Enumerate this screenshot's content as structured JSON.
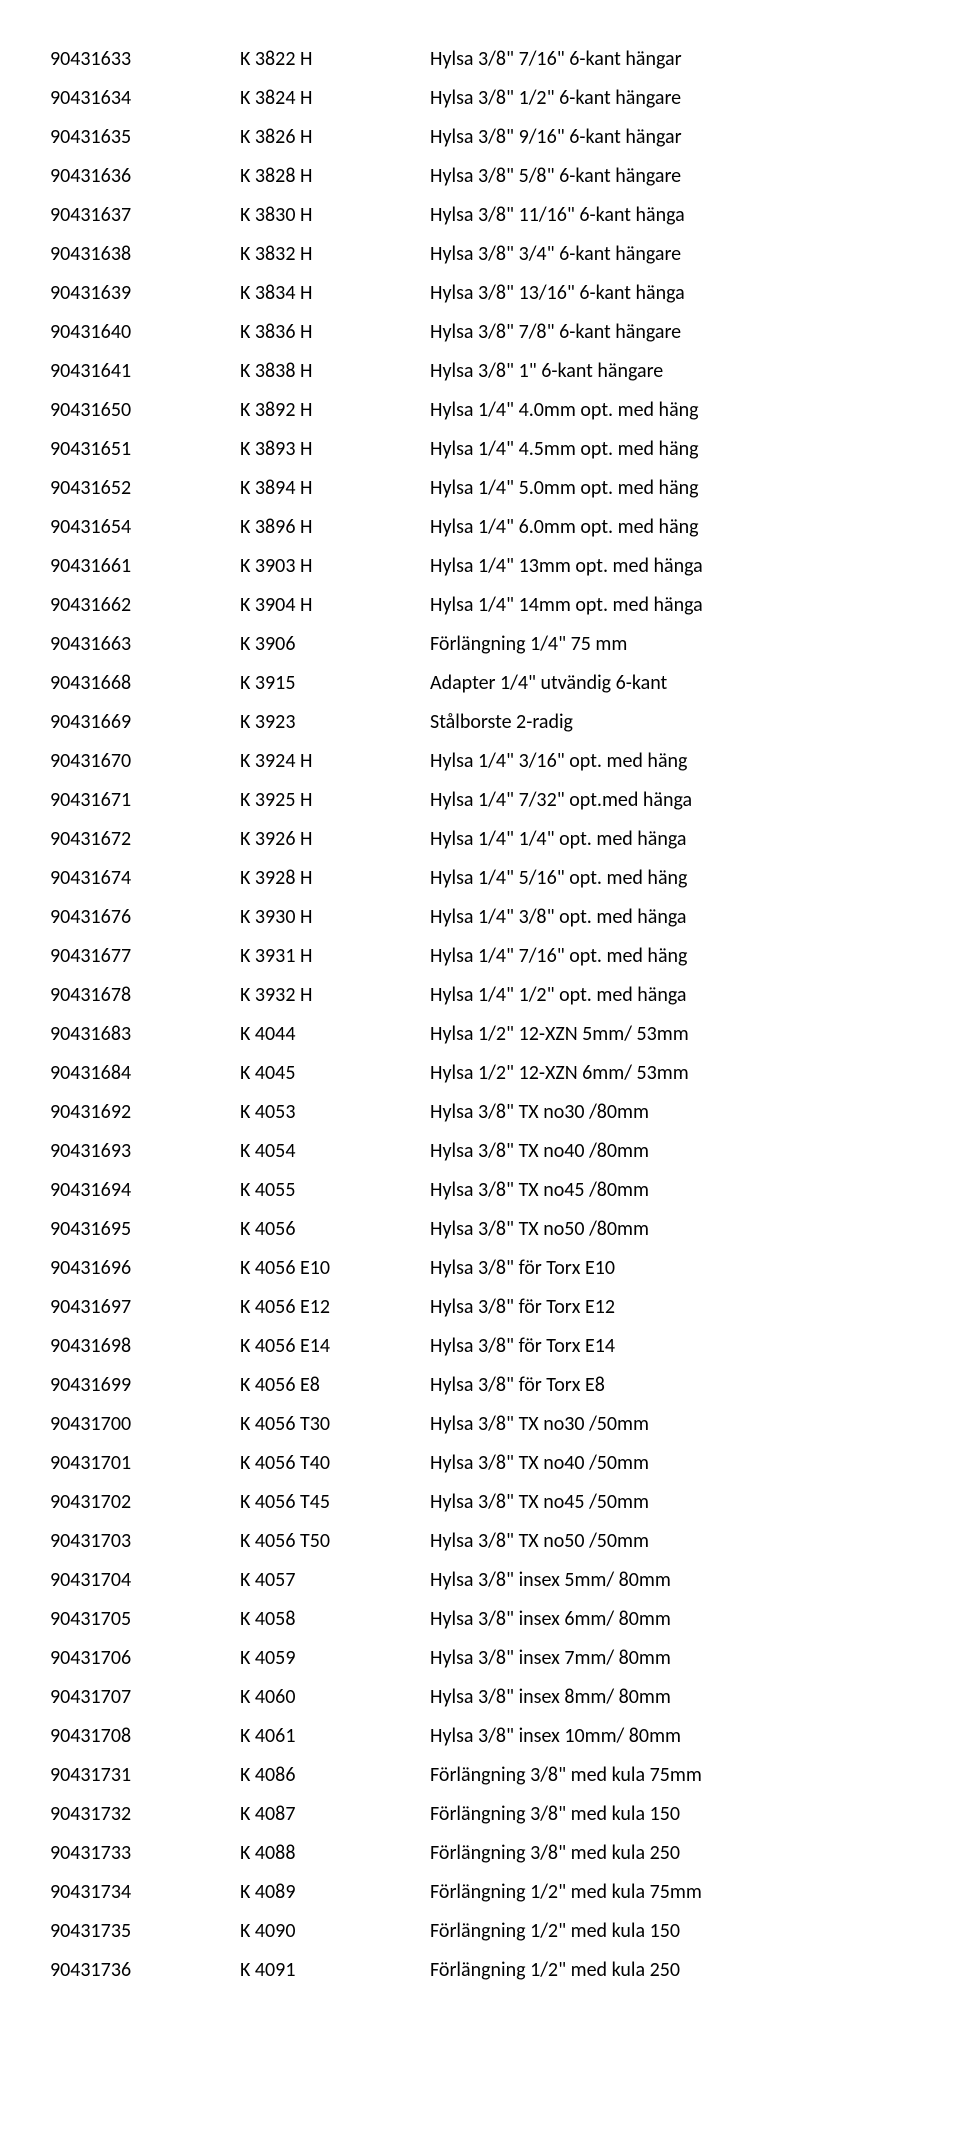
{
  "rows": [
    {
      "c1": "90431633",
      "c2": "K 3822 H",
      "c3": "Hylsa 3/8\" 7/16\" 6-kant hängar"
    },
    {
      "c1": "90431634",
      "c2": "K 3824 H",
      "c3": "Hylsa 3/8\" 1/2\" 6-kant hängare"
    },
    {
      "c1": "90431635",
      "c2": "K 3826 H",
      "c3": "Hylsa 3/8\" 9/16\" 6-kant hängar"
    },
    {
      "c1": "90431636",
      "c2": "K 3828 H",
      "c3": "Hylsa 3/8\" 5/8\" 6-kant hängare"
    },
    {
      "c1": "90431637",
      "c2": "K 3830 H",
      "c3": "Hylsa 3/8\" 11/16\" 6-kant hänga"
    },
    {
      "c1": "90431638",
      "c2": "K 3832 H",
      "c3": "Hylsa 3/8\" 3/4\" 6-kant hängare"
    },
    {
      "c1": "90431639",
      "c2": "K 3834 H",
      "c3": "Hylsa 3/8\" 13/16\" 6-kant hänga"
    },
    {
      "c1": "90431640",
      "c2": "K 3836 H",
      "c3": "Hylsa 3/8\" 7/8\" 6-kant hängare"
    },
    {
      "c1": "90431641",
      "c2": "K 3838 H",
      "c3": "Hylsa 3/8\" 1\" 6-kant hängare"
    },
    {
      "c1": "90431650",
      "c2": "K 3892 H",
      "c3": "Hylsa 1/4\" 4.0mm opt. med häng"
    },
    {
      "c1": "90431651",
      "c2": "K 3893 H",
      "c3": "Hylsa 1/4\" 4.5mm opt. med häng"
    },
    {
      "c1": "90431652",
      "c2": "K 3894 H",
      "c3": "Hylsa 1/4\" 5.0mm opt. med häng"
    },
    {
      "c1": "90431654",
      "c2": "K 3896 H",
      "c3": "Hylsa 1/4\" 6.0mm opt. med häng"
    },
    {
      "c1": "90431661",
      "c2": "K 3903 H",
      "c3": "Hylsa 1/4\" 13mm opt. med hänga"
    },
    {
      "c1": "90431662",
      "c2": "K 3904 H",
      "c3": "Hylsa 1/4\" 14mm opt. med hänga"
    },
    {
      "c1": "90431663",
      "c2": "K 3906",
      "c3": "Förlängning 1/4\" 75 mm"
    },
    {
      "c1": "90431668",
      "c2": "K 3915",
      "c3": "Adapter 1/4\" utvändig 6-kant"
    },
    {
      "c1": "90431669",
      "c2": "K 3923",
      "c3": "Stålborste 2-radig"
    },
    {
      "c1": "90431670",
      "c2": "K 3924 H",
      "c3": "Hylsa 1/4\" 3/16\" opt. med häng"
    },
    {
      "c1": "90431671",
      "c2": "K 3925 H",
      "c3": "Hylsa 1/4\" 7/32\" opt.med hänga"
    },
    {
      "c1": "90431672",
      "c2": "K 3926 H",
      "c3": "Hylsa 1/4\" 1/4\" opt. med hänga"
    },
    {
      "c1": "90431674",
      "c2": "K 3928 H",
      "c3": "Hylsa 1/4\" 5/16\" opt. med häng"
    },
    {
      "c1": "90431676",
      "c2": "K 3930 H",
      "c3": "Hylsa 1/4\" 3/8\" opt. med hänga"
    },
    {
      "c1": "90431677",
      "c2": "K 3931 H",
      "c3": "Hylsa 1/4\" 7/16\" opt. med häng"
    },
    {
      "c1": "90431678",
      "c2": "K 3932 H",
      "c3": "Hylsa 1/4\" 1/2\" opt. med hänga"
    },
    {
      "c1": "90431683",
      "c2": "K 4044",
      "c3": "Hylsa 1/2\" 12-XZN 5mm/ 53mm"
    },
    {
      "c1": "90431684",
      "c2": "K 4045",
      "c3": "Hylsa 1/2\" 12-XZN 6mm/ 53mm"
    },
    {
      "c1": "90431692",
      "c2": "K 4053",
      "c3": "Hylsa 3/8\" TX no30 /80mm"
    },
    {
      "c1": "90431693",
      "c2": "K 4054",
      "c3": "Hylsa 3/8\" TX no40 /80mm"
    },
    {
      "c1": "90431694",
      "c2": "K 4055",
      "c3": "Hylsa 3/8\" TX no45 /80mm"
    },
    {
      "c1": "90431695",
      "c2": "K 4056",
      "c3": "Hylsa 3/8\" TX no50 /80mm"
    },
    {
      "c1": "90431696",
      "c2": "K 4056 E10",
      "c3": "Hylsa 3/8\" för Torx E10"
    },
    {
      "c1": "90431697",
      "c2": "K 4056 E12",
      "c3": "Hylsa 3/8\" för Torx E12"
    },
    {
      "c1": "90431698",
      "c2": "K 4056 E14",
      "c3": "Hylsa 3/8\" för Torx E14"
    },
    {
      "c1": "90431699",
      "c2": "K 4056 E8",
      "c3": "Hylsa 3/8\" för Torx E8"
    },
    {
      "c1": "90431700",
      "c2": "K 4056 T30",
      "c3": "Hylsa 3/8\" TX no30 /50mm"
    },
    {
      "c1": "90431701",
      "c2": "K 4056 T40",
      "c3": "Hylsa 3/8\" TX no40 /50mm"
    },
    {
      "c1": "90431702",
      "c2": "K 4056 T45",
      "c3": "Hylsa 3/8\" TX no45 /50mm"
    },
    {
      "c1": "90431703",
      "c2": "K 4056 T50",
      "c3": "Hylsa 3/8\" TX no50 /50mm"
    },
    {
      "c1": "90431704",
      "c2": "K 4057",
      "c3": "Hylsa 3/8\" insex 5mm/ 80mm"
    },
    {
      "c1": "90431705",
      "c2": "K 4058",
      "c3": "Hylsa 3/8\" insex 6mm/ 80mm"
    },
    {
      "c1": "90431706",
      "c2": "K 4059",
      "c3": "Hylsa 3/8\" insex 7mm/ 80mm"
    },
    {
      "c1": "90431707",
      "c2": "K 4060",
      "c3": "Hylsa 3/8\" insex 8mm/ 80mm"
    },
    {
      "c1": "90431708",
      "c2": "K 4061",
      "c3": "Hylsa 3/8\" insex 10mm/ 80mm"
    },
    {
      "c1": "90431731",
      "c2": "K 4086",
      "c3": "Förlängning 3/8\" med kula 75mm"
    },
    {
      "c1": "90431732",
      "c2": "K 4087",
      "c3": "Förlängning 3/8\" med kula 150"
    },
    {
      "c1": "90431733",
      "c2": "K 4088",
      "c3": "Förlängning 3/8\" med kula 250"
    },
    {
      "c1": "90431734",
      "c2": "K 4089",
      "c3": "Förlängning 1/2\" med kula 75mm"
    },
    {
      "c1": "90431735",
      "c2": "K 4090",
      "c3": "Förlängning 1/2\" med kula 150"
    },
    {
      "c1": "90431736",
      "c2": "K 4091",
      "c3": "Förlängning 1/2\" med kula 250"
    }
  ]
}
